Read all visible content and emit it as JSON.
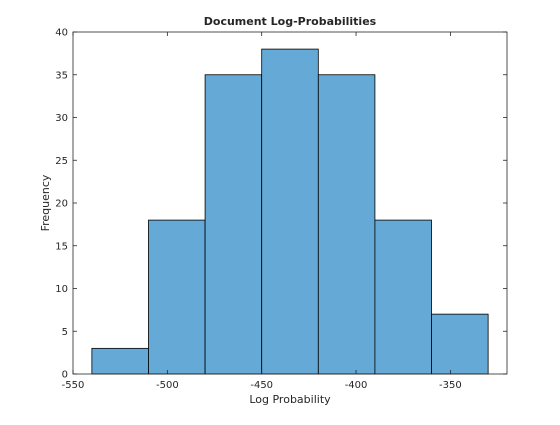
{
  "chart_data": {
    "type": "bar",
    "subtype": "histogram",
    "title": "Document Log-Probabilities",
    "xlabel": "Log Probability",
    "ylabel": "Frequency",
    "bins": [
      {
        "start": -540,
        "end": -510,
        "value": 3
      },
      {
        "start": -510,
        "end": -480,
        "value": 18
      },
      {
        "start": -480,
        "end": -450,
        "value": 35
      },
      {
        "start": -450,
        "end": -420,
        "value": 38
      },
      {
        "start": -420,
        "end": -390,
        "value": 35
      },
      {
        "start": -390,
        "end": -360,
        "value": 18
      },
      {
        "start": -360,
        "end": -330,
        "value": 7
      }
    ],
    "xlim": [
      -550,
      -320
    ],
    "ylim": [
      0,
      40
    ],
    "xticks": [
      -550,
      -500,
      -450,
      -400,
      -350
    ],
    "xtick_labels": [
      "-550",
      "-500",
      "-450",
      "-400",
      "-350"
    ],
    "yticks": [
      0,
      5,
      10,
      15,
      20,
      25,
      30,
      35,
      40
    ],
    "ytick_labels": [
      "0",
      "5",
      "10",
      "15",
      "20",
      "25",
      "30",
      "35",
      "40"
    ],
    "bar_color": "#65A9D7",
    "edge_color": "#000000",
    "grid": false
  }
}
